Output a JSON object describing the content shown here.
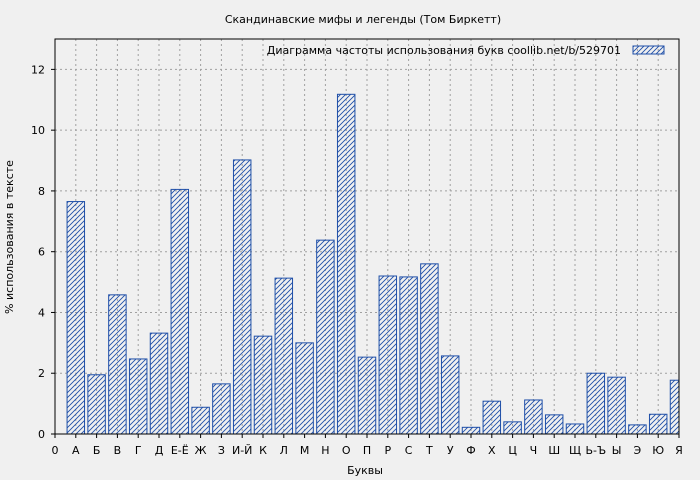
{
  "chart_data": {
    "type": "bar",
    "title": "Скандинавские мифы и легенды (Том Биркетт)",
    "xlabel": "Буквы",
    "ylabel": "% использования в тексте",
    "legend": "Диаграмма частоты использования букв  coollib.net/b/529701",
    "legend_position": "top-right",
    "grid": true,
    "ylim": [
      0,
      13
    ],
    "yticks": [
      0,
      2,
      4,
      6,
      8,
      10,
      12
    ],
    "x_tick_labels": [
      "0",
      "А",
      "Б",
      "В",
      "Г",
      "Д",
      "Е-Ё",
      "Ж",
      "З",
      "И-Й",
      "К",
      "Л",
      "М",
      "Н",
      "О",
      "П",
      "Р",
      "С",
      "Т",
      "У",
      "Ф",
      "Х",
      "Ц",
      "Ч",
      "Ш",
      "Щ",
      "Ь-Ъ",
      "Ы",
      "Э",
      "Ю",
      "Я"
    ],
    "categories": [
      "А",
      "Б",
      "В",
      "Г",
      "Д",
      "Е-Ё",
      "Ж",
      "З",
      "И-Й",
      "К",
      "Л",
      "М",
      "Н",
      "О",
      "П",
      "Р",
      "С",
      "Т",
      "У",
      "Ф",
      "Х",
      "Ц",
      "Ч",
      "Ш",
      "Щ",
      "Ь-Ъ",
      "Ы",
      "Э",
      "Ю",
      "Я"
    ],
    "values": [
      7.65,
      1.95,
      4.58,
      2.47,
      3.32,
      8.05,
      0.88,
      1.65,
      9.02,
      3.22,
      5.13,
      3.0,
      6.38,
      11.18,
      2.53,
      5.2,
      5.17,
      5.6,
      2.57,
      0.22,
      1.08,
      0.4,
      1.12,
      0.63,
      0.33,
      2.0,
      1.87,
      0.3,
      0.65,
      1.77
    ],
    "colors": {
      "bar_stroke": "#1f4fa8",
      "hatch": "#1f4fa8",
      "grid": "#a0a0a0",
      "background": "#f0f0f0"
    }
  }
}
